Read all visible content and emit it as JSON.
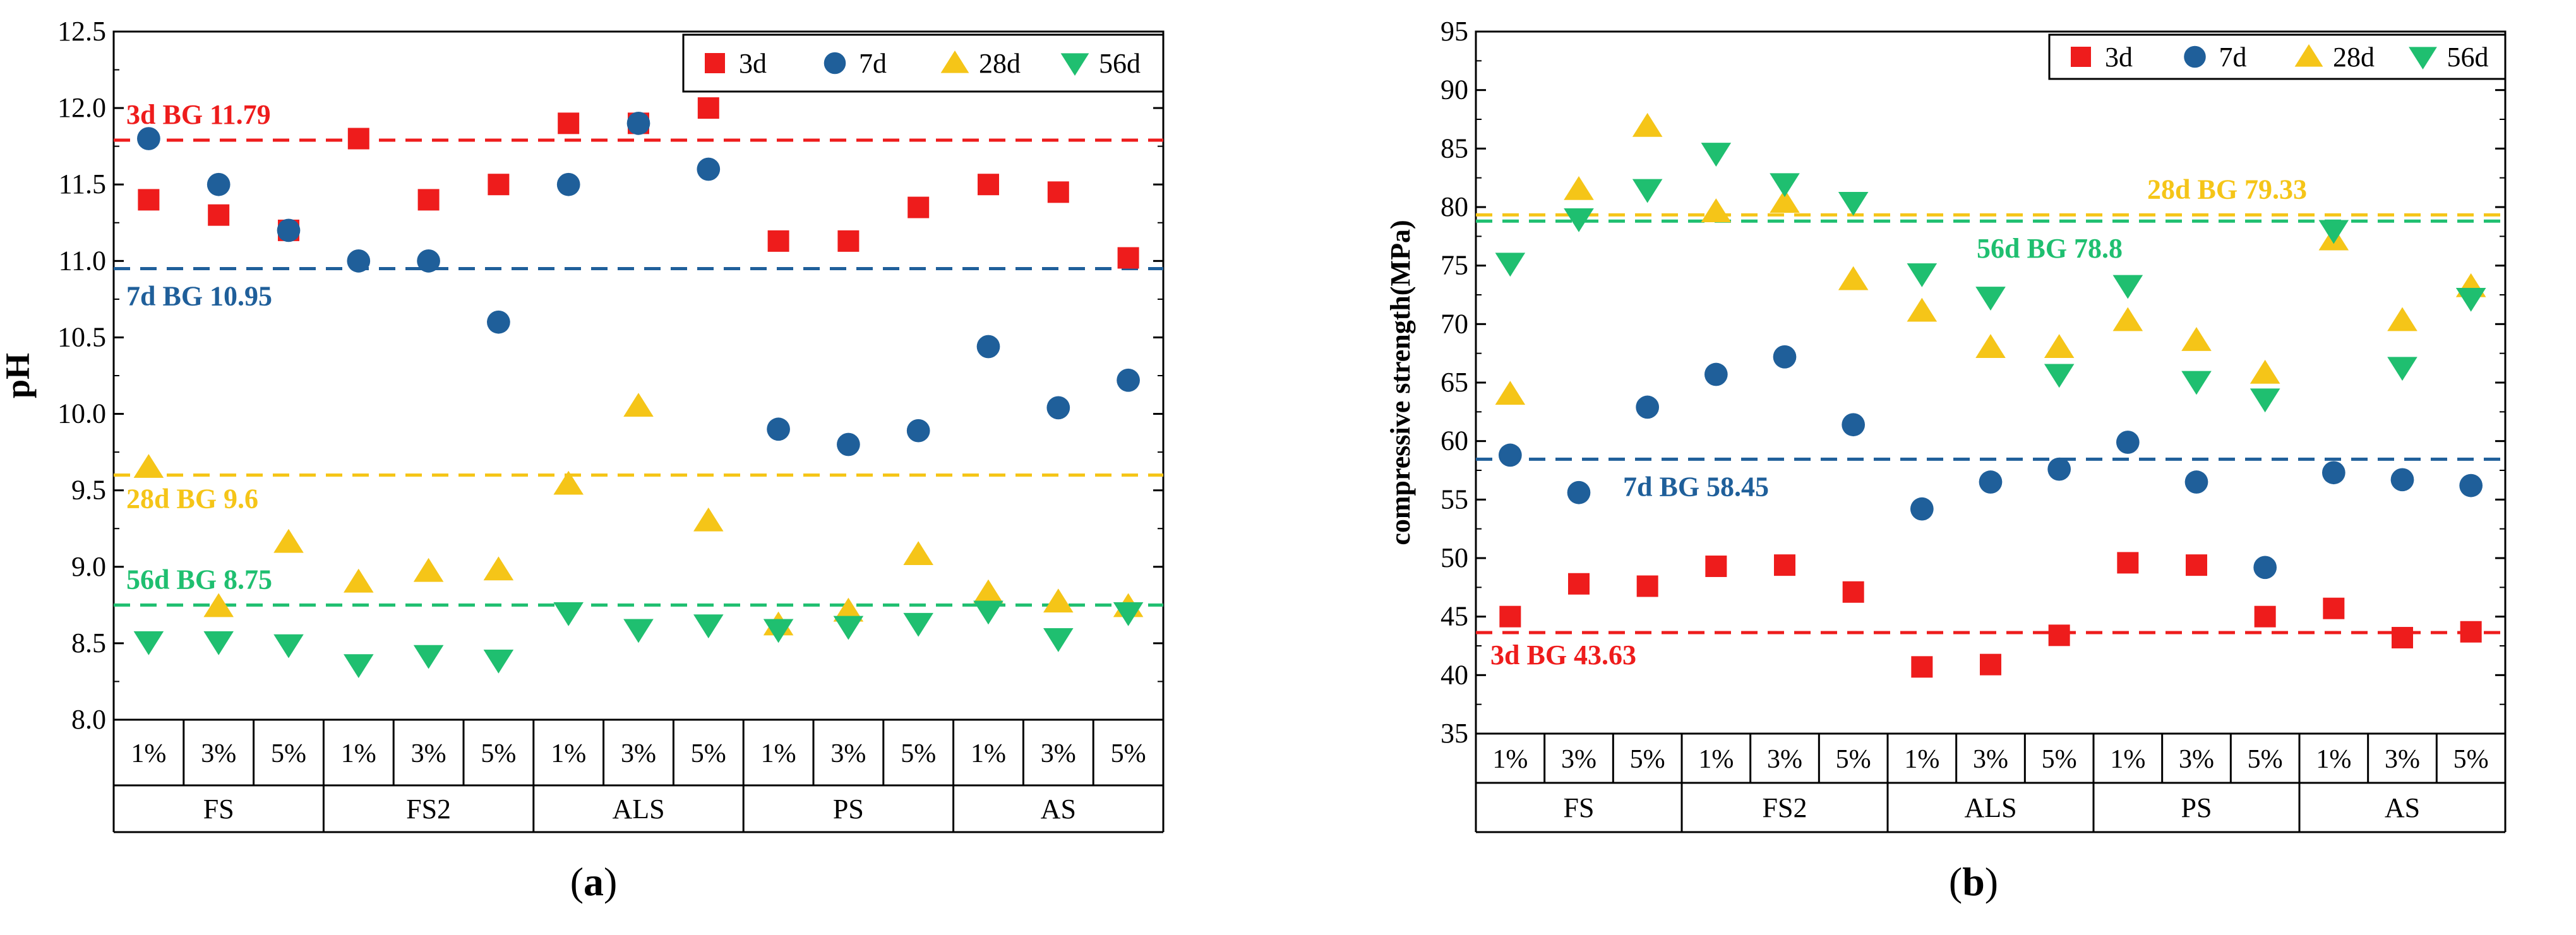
{
  "colors": {
    "3d": "#ee1c1c",
    "7d": "#1f5f9a",
    "28d": "#f5c518",
    "56d": "#1fbf70"
  },
  "chart_data": [
    {
      "type": "scatter",
      "panel_label": "a",
      "ylabel": "pH",
      "ylim": [
        8.0,
        12.5
      ],
      "yticks": [
        "8.0",
        "8.5",
        "9.0",
        "9.5",
        "10.0",
        "10.5",
        "11.0",
        "11.5",
        "12.0",
        "12.5"
      ],
      "legend_position": "top-right",
      "groups": [
        "FS",
        "FS2",
        "ALS",
        "PS",
        "AS"
      ],
      "sublabels": [
        "1%",
        "3%",
        "5%"
      ],
      "series": [
        {
          "name": "3d",
          "marker": "square",
          "color": "#ee1c1c",
          "values": [
            11.4,
            11.3,
            11.2,
            11.8,
            11.4,
            11.5,
            11.9,
            11.9,
            12.0,
            11.13,
            11.13,
            11.35,
            11.5,
            11.45,
            11.02
          ]
        },
        {
          "name": "7d",
          "marker": "circle",
          "color": "#1f5f9a",
          "values": [
            11.8,
            11.5,
            11.2,
            11.0,
            11.0,
            10.6,
            11.5,
            11.9,
            11.6,
            9.9,
            9.8,
            9.89,
            10.44,
            10.04,
            10.22
          ]
        },
        {
          "name": "28d",
          "marker": "triangle-up",
          "color": "#f5c518",
          "values": [
            9.65,
            8.74,
            9.16,
            8.9,
            8.97,
            8.98,
            9.54,
            10.05,
            9.3,
            8.62,
            8.71,
            9.08,
            8.83,
            8.77,
            8.74
          ]
        },
        {
          "name": "56d",
          "marker": "triangle-down",
          "color": "#1fbf70",
          "values": [
            8.51,
            8.51,
            8.49,
            8.36,
            8.42,
            8.39,
            8.7,
            8.59,
            8.62,
            8.59,
            8.61,
            8.63,
            8.71,
            8.53,
            8.7
          ]
        }
      ],
      "reference_lines": [
        {
          "label": "3d  BG  11.79",
          "value": 11.79,
          "color": "#ee1c1c"
        },
        {
          "label": "7d  BG  10.95",
          "value": 10.95,
          "color": "#1f5f9a"
        },
        {
          "label": "28d  BG  9.6",
          "value": 9.6,
          "color": "#f5c518"
        },
        {
          "label": "56d  BG  8.75",
          "value": 8.75,
          "color": "#1fbf70"
        }
      ]
    },
    {
      "type": "scatter",
      "panel_label": "b",
      "ylabel": "compressive strength(MPa)",
      "ylim": [
        35,
        95
      ],
      "yticks": [
        "35",
        "40",
        "45",
        "50",
        "55",
        "60",
        "65",
        "70",
        "75",
        "80",
        "85",
        "90",
        "95"
      ],
      "legend_position": "top-right",
      "groups": [
        "FS",
        "FS2",
        "ALS",
        "PS",
        "AS"
      ],
      "sublabels": [
        "1%",
        "3%",
        "5%"
      ],
      "series": [
        {
          "name": "3d",
          "marker": "square",
          "color": "#ee1c1c",
          "values": [
            45.0,
            47.8,
            47.6,
            49.3,
            49.4,
            47.1,
            40.7,
            40.9,
            43.4,
            49.6,
            49.4,
            45.0,
            45.7,
            43.2,
            43.7
          ]
        },
        {
          "name": "7d",
          "marker": "circle",
          "color": "#1f5f9a",
          "values": [
            58.8,
            55.6,
            62.9,
            65.7,
            67.2,
            61.4,
            54.2,
            56.5,
            57.6,
            59.9,
            56.5,
            49.2,
            57.3,
            56.7,
            56.2
          ]
        },
        {
          "name": "28d",
          "marker": "triangle-up",
          "color": "#f5c518",
          "values": [
            64.0,
            81.5,
            86.9,
            79.6,
            80.4,
            73.8,
            71.1,
            68.0,
            68.0,
            70.3,
            68.6,
            65.8,
            77.2,
            70.3,
            73.2
          ]
        },
        {
          "name": "56d",
          "marker": "triangle-down",
          "color": "#1fbf70",
          "values": [
            75.2,
            79.0,
            81.5,
            84.6,
            82.0,
            80.4,
            74.3,
            72.3,
            65.7,
            73.3,
            65.1,
            63.6,
            78.0,
            66.3,
            72.2
          ]
        }
      ],
      "reference_lines": [
        {
          "label": "28d BG 79.33",
          "value": 79.33,
          "color": "#f5c518"
        },
        {
          "label": "56d BG 78.8",
          "value": 78.8,
          "color": "#1fbf70"
        },
        {
          "label": "7d BG 58.45",
          "value": 58.45,
          "color": "#1f5f9a"
        },
        {
          "label": "3d BG 43.63",
          "value": 43.63,
          "color": "#ee1c1c"
        }
      ]
    }
  ]
}
